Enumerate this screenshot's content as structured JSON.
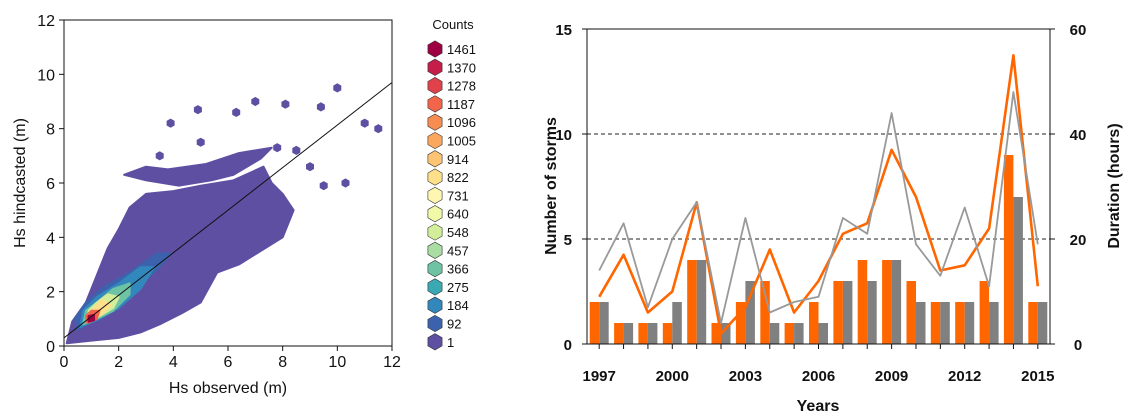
{
  "chart_data": [
    {
      "type": "hexbin",
      "xlabel": "Hs observed (m)",
      "ylabel": "Hs hindcasted (m)",
      "xlim": [
        0,
        12
      ],
      "ylim": [
        0,
        12
      ],
      "xticks": [
        "0",
        "2",
        "4",
        "6",
        "8",
        "10",
        "12"
      ],
      "yticks": [
        "0",
        "2",
        "4",
        "6",
        "8",
        "10",
        "12"
      ],
      "fit_line": {
        "x": [
          0,
          12
        ],
        "y": [
          0.3,
          9.7
        ]
      },
      "legend": {
        "title": "Counts",
        "levels": [
          "1461",
          "1370",
          "1278",
          "1187",
          "1096",
          "1005",
          "914",
          "822",
          "731",
          "640",
          "548",
          "457",
          "366",
          "275",
          "184",
          "92",
          "1"
        ],
        "colors": [
          "#9e0142",
          "#c41e49",
          "#e0424c",
          "#f2654a",
          "#f88d52",
          "#fba75e",
          "#fdc473",
          "#fee08b",
          "#fef6b1",
          "#f0f9a8",
          "#d3ee9b",
          "#a9dda4",
          "#6fc3a5",
          "#3aa9b3",
          "#3288bd",
          "#3d62ad",
          "#5e4fa2"
        ]
      },
      "regions": [
        {
          "level": "1",
          "polygon": [
            [
              0.1,
              0.1
            ],
            [
              0.3,
              0.9
            ],
            [
              0.8,
              1.6
            ],
            [
              1.2,
              2.6
            ],
            [
              1.6,
              3.6
            ],
            [
              2.0,
              4.3
            ],
            [
              2.4,
              5.1
            ],
            [
              3.0,
              5.6
            ],
            [
              4.0,
              5.7
            ],
            [
              5.0,
              5.9
            ],
            [
              6.2,
              6.1
            ],
            [
              7.3,
              6.6
            ],
            [
              7.6,
              6.0
            ],
            [
              8.0,
              5.6
            ],
            [
              8.4,
              5.0
            ],
            [
              8.0,
              4.0
            ],
            [
              7.2,
              3.5
            ],
            [
              6.4,
              3.0
            ],
            [
              5.6,
              2.7
            ],
            [
              5.0,
              1.6
            ],
            [
              4.3,
              1.2
            ],
            [
              3.5,
              0.8
            ],
            [
              2.8,
              0.5
            ],
            [
              2.0,
              0.3
            ],
            [
              1.0,
              0.2
            ]
          ]
        },
        {
          "level": "1",
          "polygon": [
            [
              2.2,
              6.3
            ],
            [
              3.0,
              6.1
            ],
            [
              4.2,
              5.9
            ],
            [
              5.4,
              6.1
            ],
            [
              6.2,
              6.3
            ],
            [
              7.2,
              6.9
            ],
            [
              7.6,
              7.3
            ],
            [
              6.4,
              7.1
            ],
            [
              5.2,
              6.7
            ],
            [
              3.8,
              6.5
            ],
            [
              3.0,
              6.6
            ]
          ]
        },
        {
          "level": "92",
          "polygon": [
            [
              0.5,
              0.6
            ],
            [
              1.5,
              1.2
            ],
            [
              2.5,
              2.0
            ],
            [
              3.4,
              2.8
            ],
            [
              3.9,
              3.4
            ],
            [
              3.4,
              3.4
            ],
            [
              2.4,
              2.7
            ],
            [
              1.5,
              2.2
            ],
            [
              0.8,
              1.6
            ],
            [
              0.4,
              1.0
            ]
          ]
        },
        {
          "level": "184",
          "polygon": [
            [
              0.6,
              0.7
            ],
            [
              1.3,
              1.0
            ],
            [
              2.0,
              1.4
            ],
            [
              2.8,
              2.1
            ],
            [
              3.3,
              2.9
            ],
            [
              2.8,
              2.9
            ],
            [
              2.0,
              2.3
            ],
            [
              1.2,
              1.8
            ],
            [
              0.7,
              1.3
            ]
          ]
        },
        {
          "level": "366",
          "polygon": [
            [
              0.7,
              0.8
            ],
            [
              1.2,
              1.0
            ],
            [
              1.8,
              1.3
            ],
            [
              2.4,
              1.9
            ],
            [
              2.4,
              2.3
            ],
            [
              1.8,
              2.1
            ],
            [
              1.2,
              1.6
            ],
            [
              0.8,
              1.3
            ]
          ]
        },
        {
          "level": "548",
          "polygon": [
            [
              0.9,
              0.9
            ],
            [
              1.3,
              1.1
            ],
            [
              1.8,
              1.4
            ],
            [
              2.0,
              1.8
            ],
            [
              1.6,
              1.9
            ],
            [
              1.2,
              1.6
            ],
            [
              0.9,
              1.3
            ]
          ]
        },
        {
          "level": "822",
          "polygon": [
            [
              1.0,
              1.0
            ],
            [
              1.4,
              1.2
            ],
            [
              1.7,
              1.5
            ],
            [
              1.4,
              1.7
            ],
            [
              1.1,
              1.4
            ]
          ]
        },
        {
          "level": "1187",
          "polygon": [
            [
              0.85,
              0.85
            ],
            [
              1.2,
              1.0
            ],
            [
              1.3,
              1.3
            ],
            [
              1.0,
              1.3
            ],
            [
              0.8,
              1.1
            ]
          ]
        },
        {
          "level": "1461",
          "polygon": [
            [
              0.9,
              0.9
            ],
            [
              1.1,
              0.95
            ],
            [
              1.1,
              1.15
            ],
            [
              0.9,
              1.1
            ]
          ]
        }
      ],
      "outliers": [
        [
          3.9,
          8.2
        ],
        [
          4.9,
          8.7
        ],
        [
          6.3,
          8.6
        ],
        [
          7.0,
          9.0
        ],
        [
          8.1,
          8.9
        ],
        [
          9.4,
          8.8
        ],
        [
          10.0,
          9.5
        ],
        [
          11.5,
          8.0
        ],
        [
          11.0,
          8.2
        ],
        [
          10.3,
          6.0
        ],
        [
          9.5,
          5.9
        ],
        [
          9.0,
          6.6
        ],
        [
          8.5,
          7.2
        ],
        [
          7.8,
          7.3
        ],
        [
          5.0,
          7.5
        ],
        [
          3.5,
          7.0
        ],
        [
          6.8,
          4.6
        ]
      ]
    },
    {
      "type": "bar+line",
      "xlabel": "Years",
      "ylabel": "Number of storms",
      "y2label": "Duration (hours)",
      "ylim": [
        0,
        15
      ],
      "y2lim": [
        0,
        60
      ],
      "yticks": [
        "0",
        "5",
        "10",
        "15"
      ],
      "y2ticks": [
        "0",
        "20",
        "40",
        "60"
      ],
      "xticks": [
        "1997",
        "2000",
        "2003",
        "2006",
        "2009",
        "2012",
        "2015"
      ],
      "gridlines": [
        5,
        10
      ],
      "categories": [
        "1997",
        "1998",
        "1999",
        "2000",
        "2001",
        "2002",
        "2003",
        "2004",
        "2005",
        "2006",
        "2007",
        "2008",
        "2009",
        "2010",
        "2011",
        "2012",
        "2013",
        "2014",
        "2015"
      ],
      "series": [
        {
          "kind": "bar",
          "axis": "left",
          "color": "#ff6600",
          "values": [
            2,
            1,
            1,
            1,
            4,
            1,
            2,
            3,
            1,
            2,
            3,
            4,
            4,
            3,
            2,
            2,
            3,
            9,
            2
          ]
        },
        {
          "kind": "bar",
          "axis": "left",
          "color": "#808080",
          "values": [
            2,
            1,
            1,
            2,
            4,
            1,
            3,
            1,
            1,
            1,
            3,
            3,
            4,
            2,
            2,
            2,
            2,
            7,
            2
          ]
        },
        {
          "kind": "line",
          "axis": "right",
          "color": "#ff6600",
          "values": [
            9,
            17,
            6,
            10,
            27,
            2,
            7,
            18,
            6,
            12,
            21,
            23,
            37,
            28,
            14,
            15,
            22,
            55,
            11
          ]
        },
        {
          "kind": "line",
          "axis": "right",
          "color": "#999999",
          "values": [
            14,
            23,
            7,
            20,
            27,
            4,
            24,
            6,
            8,
            9,
            24,
            21,
            44,
            19,
            13,
            26,
            11,
            48,
            19
          ]
        }
      ]
    }
  ]
}
